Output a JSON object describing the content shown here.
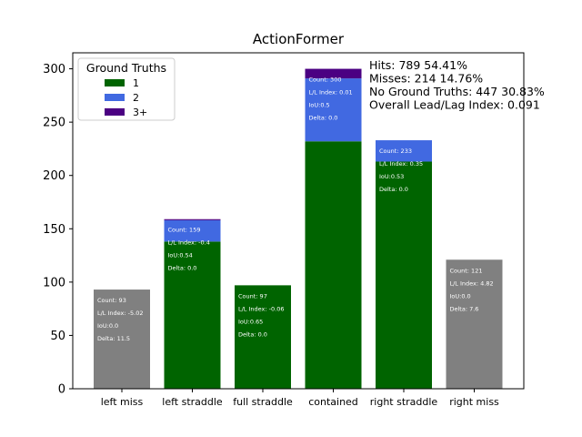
{
  "chart_data": {
    "type": "bar",
    "stacked": true,
    "title": "ActionFormer",
    "xlabel": "",
    "ylabel": "",
    "ylim": [
      0,
      315
    ],
    "yticks": [
      0,
      50,
      100,
      150,
      200,
      250,
      300
    ],
    "categories": [
      "left miss",
      "left straddle",
      "full straddle",
      "contained",
      "right straddle",
      "right miss"
    ],
    "series": [
      {
        "name": "1",
        "color": "#006400",
        "values": [
          0,
          138,
          97,
          232,
          213,
          0
        ]
      },
      {
        "name": "2",
        "color": "#4169e1",
        "values": [
          0,
          20,
          0,
          59,
          20,
          0
        ]
      },
      {
        "name": "3+",
        "color": "#4b0082",
        "values": [
          0,
          1,
          0,
          9,
          0,
          0
        ]
      }
    ],
    "miss_series": {
      "color": "#808080",
      "values": [
        93,
        0,
        0,
        0,
        0,
        121
      ]
    },
    "bar_annotations": [
      {
        "count": "Count: 93",
        "ll": "L/L Index: -5.02",
        "iou": "IoU:0.0",
        "delta": "Delta: 11.5"
      },
      {
        "count": "Count: 159",
        "ll": "L/L Index: -0.4",
        "iou": "IoU:0.54",
        "delta": "Delta: 0.0"
      },
      {
        "count": "Count: 97",
        "ll": "L/L Index: -0.06",
        "iou": "IoU:0.65",
        "delta": "Delta: 0.0"
      },
      {
        "count": "Count: 300",
        "ll": "L/L Index: 0.01",
        "iou": "IoU:0.5",
        "delta": "Delta: 0.0"
      },
      {
        "count": "Count: 233",
        "ll": "L/L Index: 0.35",
        "iou": "IoU:0.53",
        "delta": "Delta: 0.0"
      },
      {
        "count": "Count: 121",
        "ll": "L/L Index: 4.82",
        "iou": "IoU:0.0",
        "delta": "Delta: 7.6"
      }
    ],
    "stats": [
      "Hits: 789  54.41%",
      "Misses: 214  14.76%",
      "No Ground Truths: 447  30.83%",
      "Overall Lead/Lag Index: 0.091"
    ],
    "legend": {
      "title": "Ground Truths",
      "placement": "top-left"
    },
    "grid": false
  }
}
